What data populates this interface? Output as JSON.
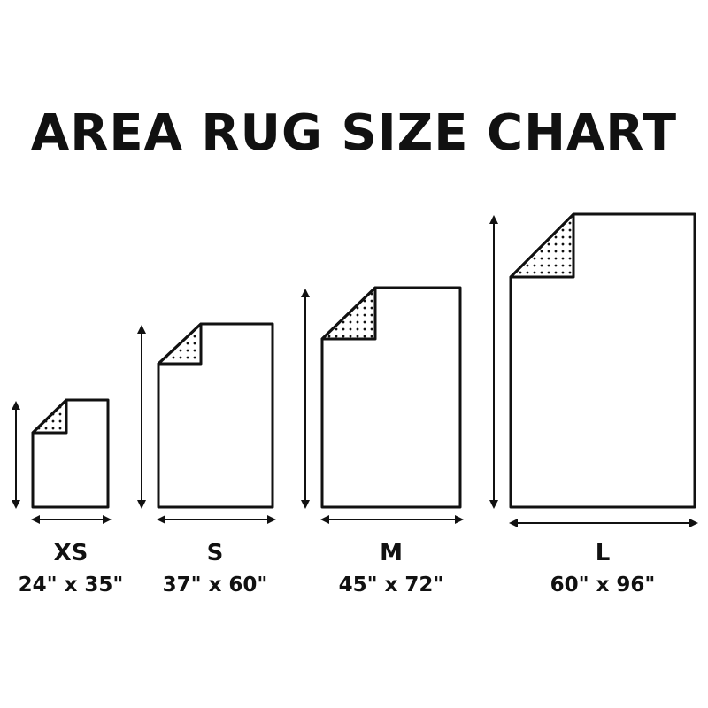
{
  "title": "AREA RUG SIZE CHART",
  "sizes": [
    {
      "name": "XS",
      "dimensions": "24\" x 35\"",
      "width_in": 24,
      "length_in": 35
    },
    {
      "name": "S",
      "dimensions": "37\" x 60\"",
      "width_in": 37,
      "length_in": 60
    },
    {
      "name": "M",
      "dimensions": "45\" x 72\"",
      "width_in": 45,
      "length_in": 72
    },
    {
      "name": "L",
      "dimensions": "60\" x 96\"",
      "width_in": 60,
      "length_in": 96
    }
  ],
  "colors": {
    "stroke": "#111111",
    "background": "#ffffff"
  }
}
